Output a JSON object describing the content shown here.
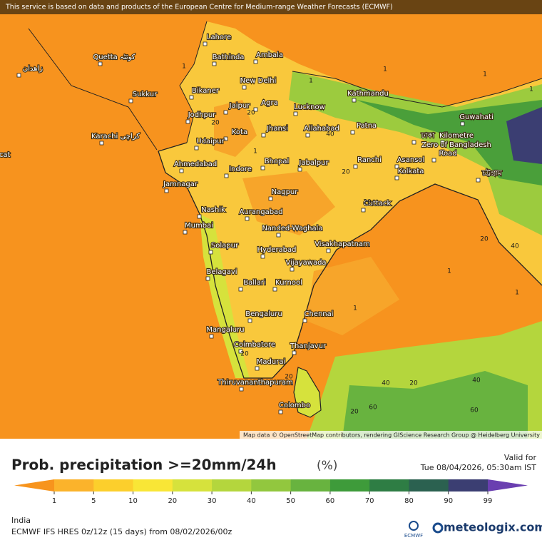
{
  "banner": "This service is based on data and products of the European Centre for Medium-range Weather Forecasts (ECMWF)",
  "map": {
    "cities": [
      "Lahore",
      "Bathinda",
      "Ambala",
      "Quetta كوئٹہ",
      "زاهدان",
      "New Delhi",
      "Sukkur",
      "Bikaner",
      "Jaipur",
      "Agra",
      "Lucknow",
      "Kathmandu",
      "Guwahati",
      "Jodhpur",
      "Jhansi",
      "Allahabad",
      "Patna",
      "Kota",
      "Karachi کراچی",
      "Udaipur",
      "ঢাকা",
      "Kilometre",
      "Zero of Bangladesh",
      "Road",
      "চট্টগ্রাম",
      "Ranchi",
      "Asansol",
      "Kolkata",
      "Bhopal",
      "Jabalpur",
      "Ahmedabad",
      "Indore",
      "Jamnagar",
      "scat",
      "Nagpur",
      "Cuttack",
      "Nashik",
      "Aurangabad",
      "Mumbai",
      "Nanded-Waghala",
      "Visakhapatnam",
      "Solapur",
      "Hyderabad",
      "Vijayawada",
      "Belagavi",
      "Ballari",
      "Kurnool",
      "Bengaluru",
      "Chennai",
      "Mangaluru",
      "Coimbatore",
      "Thanjavur",
      "Madurai",
      "Thiruvananthapuram",
      "Colombo"
    ],
    "contour_labels": [
      "1",
      "1",
      "1",
      "1",
      "1",
      "20",
      "20",
      "40",
      "20",
      "1",
      "20",
      "20",
      "40",
      "1",
      "20",
      "20",
      "40",
      "20",
      "40",
      "60",
      "20",
      "60",
      "1",
      "1"
    ],
    "attribution": "Map data © OpenStreetMap contributors, rendering GIScience Research Group @ Heidelberg University"
  },
  "footer": {
    "title": "Prob. precipitation >=20mm/24h",
    "unit": "(%)",
    "valid_label": "Valid for",
    "valid_time": "Tue 08/04/2026, 05:30am IST",
    "region": "India",
    "model": "ECMWF IFS HRES 0z/12z (15 days) from  08/02/2026/00z",
    "ecmwf": "ECMWF",
    "brand": "meteologix.com"
  },
  "legend": {
    "ticks": [
      1,
      5,
      10,
      20,
      30,
      40,
      50,
      60,
      70,
      80,
      90,
      99
    ],
    "colors": [
      "#f7941d",
      "#fbb32b",
      "#fccf2c",
      "#f9e636",
      "#d6e23c",
      "#b4d63d",
      "#92c73e",
      "#68b33f",
      "#3e9b3a",
      "#2e7d44",
      "#2b6150",
      "#3b3e72",
      "#6a3fb0"
    ]
  }
}
